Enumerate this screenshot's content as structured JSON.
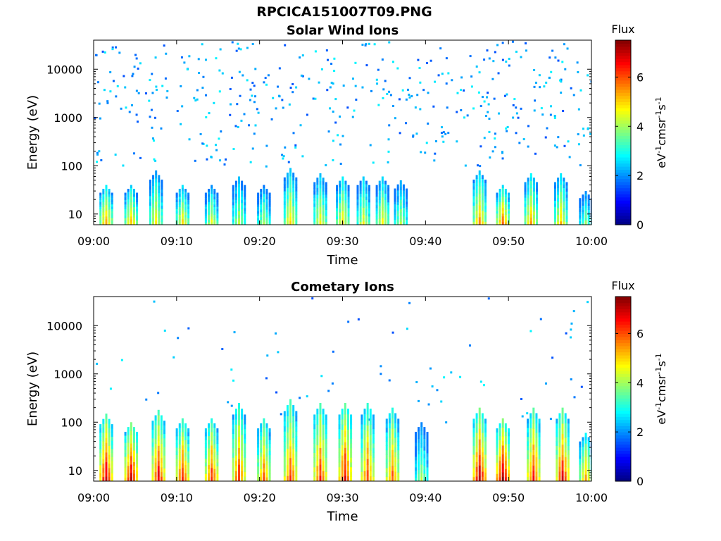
{
  "figure": {
    "title": "RPCICA151007T09.PNG"
  },
  "colors": {
    "background": "#ffffff",
    "axis": "#000000",
    "colormap": [
      "#00007f",
      "#0000ff",
      "#007fff",
      "#00ffff",
      "#7fff7f",
      "#ffff00",
      "#ff7f00",
      "#ff0000",
      "#7f0000"
    ]
  },
  "chart_data": [
    {
      "type": "heatmap",
      "title": "Solar Wind Ions",
      "xlabel": "Time",
      "ylabel": "Energy (eV)",
      "xticks": [
        "09:00",
        "09:10",
        "09:20",
        "09:30",
        "09:40",
        "09:50",
        "10:00"
      ],
      "x_range_minutes": [
        0,
        60
      ],
      "yscale": "log",
      "yticks": [
        10,
        100,
        1000,
        10000
      ],
      "ytick_labels": [
        "10",
        "100",
        "1000",
        "10000"
      ],
      "ylim": [
        6,
        40000
      ],
      "grid": false,
      "colorbar": {
        "label": "Flux",
        "unit_label": "eV-1cm-2sr-1s-1",
        "range": [
          0,
          7.5
        ],
        "ticks": [
          "0",
          "2",
          "4",
          "6"
        ]
      },
      "background_counts_per_decade": {
        "100-1000": 130,
        "1000-10000": 210,
        "10000-40000": 90
      },
      "bursts": [
        {
          "t": 1.5,
          "level": 5.5,
          "emax": 40
        },
        {
          "t": 4.5,
          "level": 5.2,
          "emax": 40
        },
        {
          "t": 7.5,
          "level": 4.8,
          "emax": 80
        },
        {
          "t": 10.7,
          "level": 5.0,
          "emax": 40
        },
        {
          "t": 14.2,
          "level": 4.5,
          "emax": 40
        },
        {
          "t": 17.5,
          "level": 4.3,
          "emax": 60
        },
        {
          "t": 20.5,
          "level": 4.2,
          "emax": 40
        },
        {
          "t": 23.7,
          "level": 5.0,
          "emax": 90
        },
        {
          "t": 27.3,
          "level": 4.8,
          "emax": 70
        },
        {
          "t": 30.0,
          "level": 5.0,
          "emax": 60
        },
        {
          "t": 32.5,
          "level": 4.6,
          "emax": 60
        },
        {
          "t": 34.8,
          "level": 4.8,
          "emax": 60
        },
        {
          "t": 37.0,
          "level": 4.2,
          "emax": 50
        },
        {
          "t": 46.5,
          "level": 5.5,
          "emax": 80
        },
        {
          "t": 49.3,
          "level": 5.8,
          "emax": 40
        },
        {
          "t": 52.7,
          "level": 5.3,
          "emax": 70
        },
        {
          "t": 56.3,
          "level": 5.0,
          "emax": 70
        },
        {
          "t": 59.3,
          "level": 3.8,
          "emax": 30
        }
      ]
    },
    {
      "type": "heatmap",
      "title": "Cometary Ions",
      "xlabel": "Time",
      "ylabel": "Energy (eV)",
      "xticks": [
        "09:00",
        "09:10",
        "09:20",
        "09:30",
        "09:40",
        "09:50",
        "10:00"
      ],
      "x_range_minutes": [
        0,
        60
      ],
      "yscale": "log",
      "yticks": [
        10,
        100,
        1000,
        10000
      ],
      "ytick_labels": [
        "10",
        "100",
        "1000",
        "10000"
      ],
      "ylim": [
        6,
        40000
      ],
      "grid": false,
      "colorbar": {
        "label": "Flux",
        "unit_label": "eV-1cm-2sr-1s-1",
        "range": [
          0,
          7.5
        ],
        "ticks": [
          "0",
          "2",
          "4",
          "6"
        ]
      },
      "background_counts_per_decade": {
        "100-1000": 35,
        "1000-10000": 25,
        "10000-40000": 10
      },
      "bursts": [
        {
          "t": 1.5,
          "level": 7.0,
          "emax": 150
        },
        {
          "t": 4.5,
          "level": 7.2,
          "emax": 100
        },
        {
          "t": 7.8,
          "level": 6.8,
          "emax": 180
        },
        {
          "t": 10.7,
          "level": 6.5,
          "emax": 120
        },
        {
          "t": 14.2,
          "level": 6.5,
          "emax": 120
        },
        {
          "t": 17.5,
          "level": 6.3,
          "emax": 250
        },
        {
          "t": 20.5,
          "level": 6.0,
          "emax": 120
        },
        {
          "t": 23.7,
          "level": 6.3,
          "emax": 300
        },
        {
          "t": 27.3,
          "level": 6.5,
          "emax": 250
        },
        {
          "t": 30.3,
          "level": 6.8,
          "emax": 250
        },
        {
          "t": 33.0,
          "level": 6.2,
          "emax": 250
        },
        {
          "t": 36.0,
          "level": 6.0,
          "emax": 200
        },
        {
          "t": 39.5,
          "level": 4.0,
          "emax": 100
        },
        {
          "t": 46.5,
          "level": 7.2,
          "emax": 200
        },
        {
          "t": 49.3,
          "level": 7.4,
          "emax": 120
        },
        {
          "t": 53.0,
          "level": 6.6,
          "emax": 200
        },
        {
          "t": 56.5,
          "level": 6.8,
          "emax": 200
        },
        {
          "t": 59.3,
          "level": 5.5,
          "emax": 60
        }
      ]
    }
  ]
}
